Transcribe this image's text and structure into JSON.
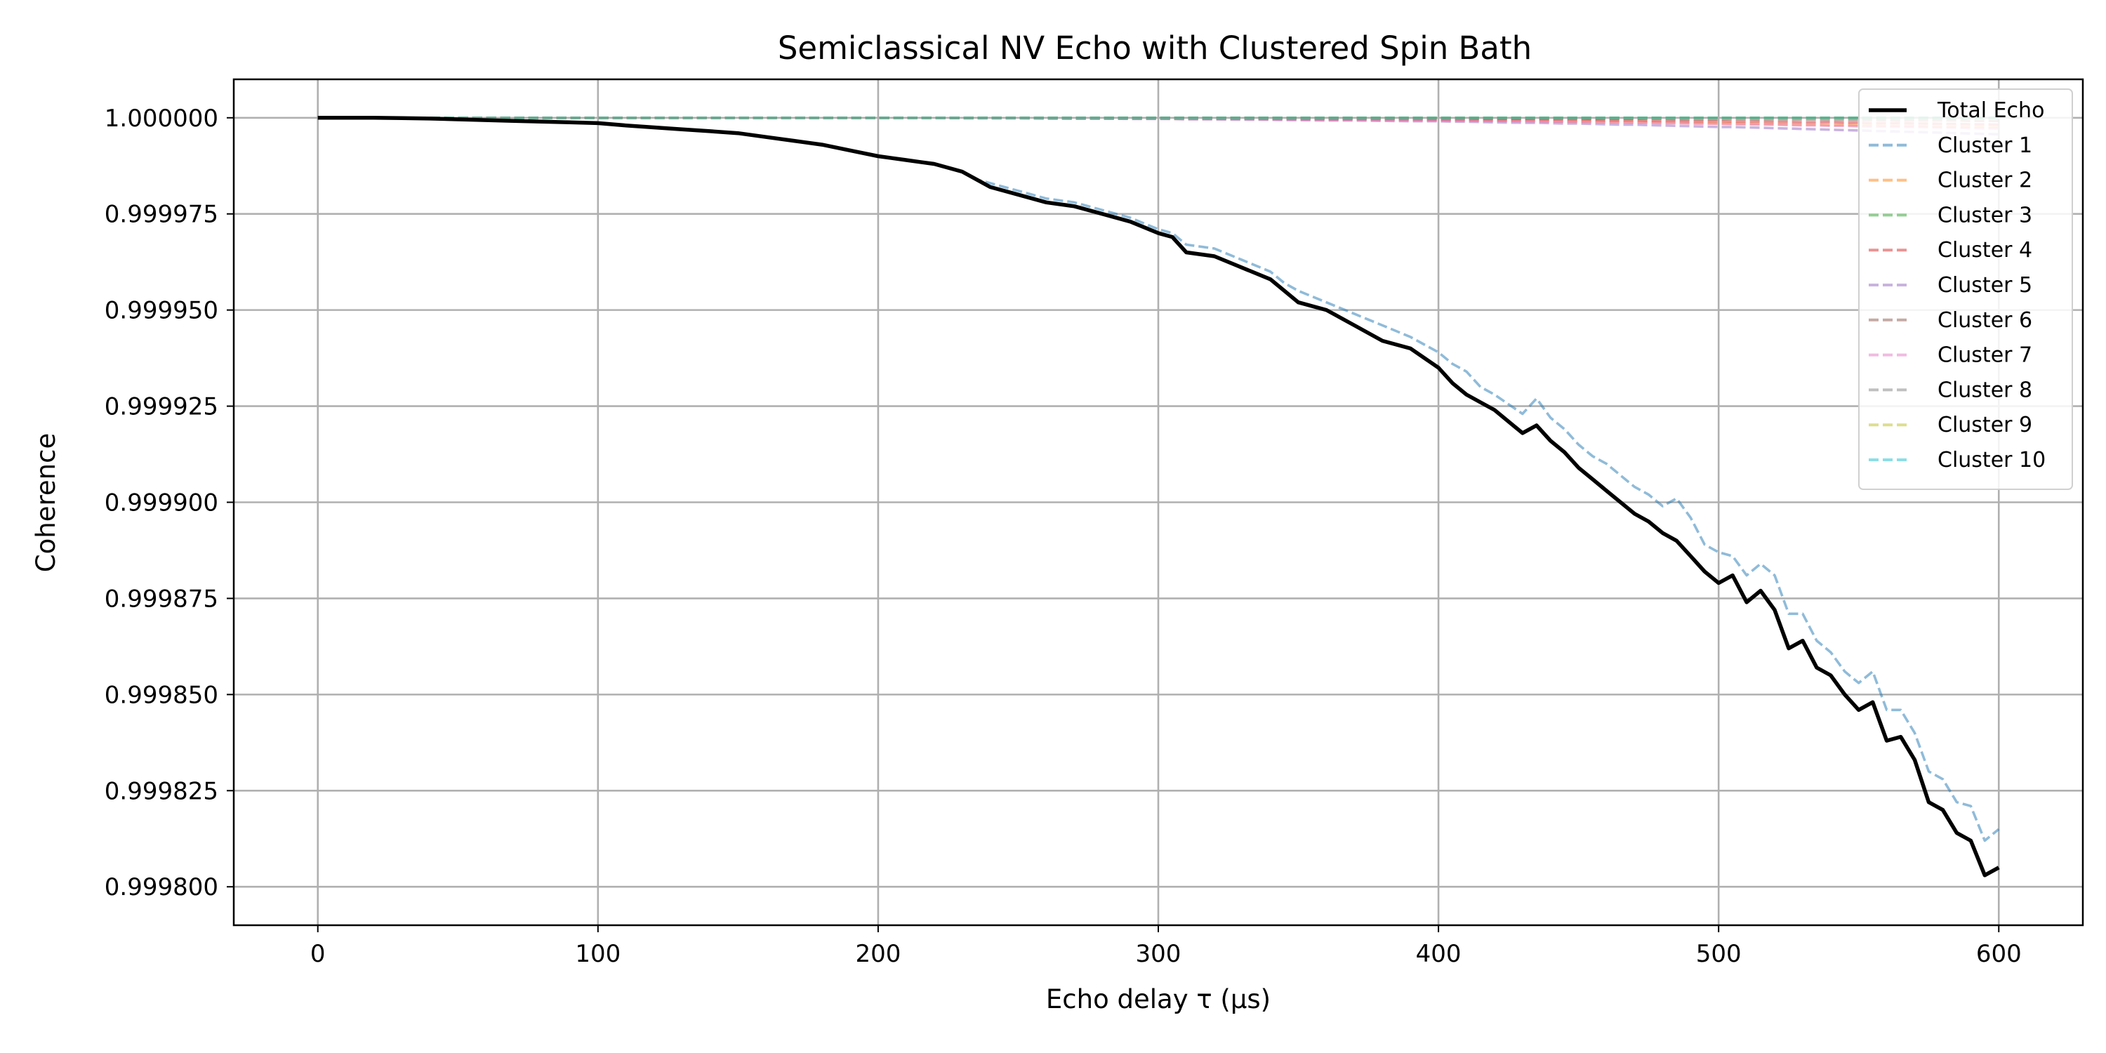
{
  "chart_data": {
    "type": "line",
    "title": "Semiclassical NV Echo with Clustered Spin Bath",
    "xlabel": "Echo delay τ (μs)",
    "ylabel": "Coherence",
    "xlim": [
      -30,
      630
    ],
    "ylim": [
      0.99979,
      1.00001
    ],
    "x_ticks": [
      0,
      100,
      200,
      300,
      400,
      500,
      600
    ],
    "x_tick_labels": [
      "0",
      "100",
      "200",
      "300",
      "400",
      "500",
      "600"
    ],
    "y_ticks": [
      0.9998,
      0.999825,
      0.99985,
      0.999875,
      0.9999,
      0.999925,
      0.99995,
      0.999975,
      1.0
    ],
    "y_tick_labels": [
      "0.999800",
      "0.999825",
      "0.999850",
      "0.999875",
      "0.999900",
      "0.999925",
      "0.999950",
      "0.999975",
      "1.000000"
    ],
    "grid": true,
    "legend_position": "top-right",
    "x": [
      0,
      10,
      20,
      30,
      40,
      50,
      60,
      70,
      80,
      90,
      100,
      110,
      120,
      130,
      140,
      150,
      160,
      170,
      180,
      190,
      200,
      210,
      215,
      220,
      230,
      235,
      240,
      250,
      260,
      270,
      280,
      290,
      300,
      305,
      310,
      320,
      330,
      340,
      345,
      350,
      360,
      370,
      380,
      390,
      400,
      405,
      410,
      415,
      420,
      430,
      435,
      440,
      445,
      450,
      455,
      460,
      465,
      470,
      475,
      480,
      485,
      490,
      495,
      500,
      505,
      510,
      515,
      520,
      525,
      530,
      535,
      540,
      545,
      550,
      555,
      560,
      565,
      570,
      575,
      580,
      585,
      590,
      595,
      600
    ],
    "series": [
      {
        "name": "Total Echo",
        "color": "#000000",
        "style": "solid",
        "values": [
          1.0,
          1.0,
          1.0,
          0.9999999,
          0.9999998,
          0.9999996,
          0.9999994,
          0.9999992,
          0.999999,
          0.9999988,
          0.9999986,
          0.999998,
          0.9999975,
          0.999997,
          0.9999965,
          0.999996,
          0.999995,
          0.999994,
          0.999993,
          0.9999915,
          0.99999,
          0.999989,
          0.9999885,
          0.999988,
          0.999986,
          0.999984,
          0.999982,
          0.99998,
          0.999978,
          0.999977,
          0.999975,
          0.999973,
          0.99997,
          0.999969,
          0.999965,
          0.999964,
          0.999961,
          0.999958,
          0.999955,
          0.999952,
          0.99995,
          0.999946,
          0.999942,
          0.99994,
          0.999935,
          0.999931,
          0.999928,
          0.999926,
          0.999924,
          0.999918,
          0.99992,
          0.999916,
          0.999913,
          0.999909,
          0.999906,
          0.999903,
          0.9999,
          0.999897,
          0.999895,
          0.999892,
          0.99989,
          0.999886,
          0.999882,
          0.999879,
          0.999881,
          0.999874,
          0.999877,
          0.999872,
          0.999862,
          0.999864,
          0.999857,
          0.999855,
          0.99985,
          0.999846,
          0.999848,
          0.999838,
          0.999839,
          0.999833,
          0.999822,
          0.99982,
          0.999814,
          0.999812,
          0.999803,
          0.999805
        ]
      },
      {
        "name": "Cluster 1",
        "color": "#1f77b4",
        "style": "dashed",
        "values": [
          1.0,
          1.0,
          1.0,
          0.9999999,
          0.9999998,
          0.9999996,
          0.9999994,
          0.9999992,
          0.999999,
          0.9999988,
          0.9999986,
          0.999998,
          0.9999975,
          0.999997,
          0.9999965,
          0.999996,
          0.999995,
          0.999994,
          0.999993,
          0.9999915,
          0.99999,
          0.999989,
          0.9999885,
          0.999988,
          0.999986,
          0.999984,
          0.999983,
          0.999981,
          0.999979,
          0.999978,
          0.999976,
          0.999974,
          0.999971,
          0.99997,
          0.999967,
          0.999966,
          0.999963,
          0.99996,
          0.999957,
          0.999955,
          0.999952,
          0.999949,
          0.999946,
          0.999943,
          0.999939,
          0.999936,
          0.999934,
          0.99993,
          0.999928,
          0.999923,
          0.999927,
          0.999922,
          0.999919,
          0.999915,
          0.999912,
          0.99991,
          0.999907,
          0.999904,
          0.999902,
          0.999899,
          0.999901,
          0.999896,
          0.999889,
          0.999887,
          0.999886,
          0.999881,
          0.999884,
          0.999881,
          0.999871,
          0.999871,
          0.999864,
          0.999861,
          0.999856,
          0.999853,
          0.999856,
          0.999846,
          0.999846,
          0.99984,
          0.99983,
          0.999828,
          0.999822,
          0.999821,
          0.999812,
          0.999815
        ]
      },
      {
        "name": "Cluster 2",
        "color": "#ff7f0e",
        "style": "dashed",
        "values": [
          1.0,
          1.0,
          1.0,
          1.0,
          1.0,
          1.0,
          1.0,
          1.0,
          1.0,
          1.0,
          1.0,
          1.0,
          1.0,
          1.0,
          1.0,
          1.0,
          1.0,
          1.0,
          1.0,
          1.0,
          1.0,
          1.0,
          1.0,
          1.0,
          0.9999999,
          0.9999999,
          0.9999999,
          0.9999999,
          0.9999999,
          0.9999998,
          0.9999998,
          0.9999998,
          0.9999998,
          0.9999997,
          0.9999997,
          0.9999997,
          0.9999997,
          0.9999996,
          0.9999996,
          0.9999996,
          0.9999995,
          0.9999995,
          0.9999995,
          0.9999994,
          0.9999994,
          0.9999993,
          0.9999993,
          0.9999993,
          0.9999992,
          0.9999992,
          0.9999991,
          0.9999991,
          0.999999,
          0.999999,
          0.999999,
          0.9999989,
          0.9999989,
          0.9999988,
          0.9999988,
          0.9999987,
          0.9999987,
          0.9999986,
          0.9999986,
          0.9999985,
          0.9999985,
          0.9999984,
          0.9999984,
          0.9999983,
          0.9999983,
          0.9999982,
          0.9999982,
          0.9999981,
          0.9999981,
          0.999998,
          0.999998,
          0.9999979,
          0.9999979,
          0.9999978,
          0.9999978,
          0.9999977,
          0.9999977,
          0.9999976,
          0.9999976,
          0.9999975
        ]
      },
      {
        "name": "Cluster 3",
        "color": "#2ca02c",
        "style": "dashed",
        "values": [
          1.0,
          1.0,
          1.0,
          1.0,
          1.0,
          1.0,
          1.0,
          1.0,
          1.0,
          1.0,
          1.0,
          1.0,
          1.0,
          1.0,
          1.0,
          1.0,
          1.0,
          1.0,
          1.0,
          1.0,
          1.0,
          1.0,
          1.0,
          1.0,
          1.0,
          1.0,
          1.0,
          1.0,
          1.0,
          1.0,
          1.0,
          1.0,
          1.0,
          1.0,
          1.0,
          1.0,
          1.0,
          1.0,
          1.0,
          1.0,
          1.0,
          1.0,
          1.0,
          1.0,
          1.0,
          1.0,
          1.0,
          1.0,
          1.0,
          1.0,
          1.0,
          1.0,
          1.0,
          1.0,
          1.0,
          1.0,
          1.0,
          1.0,
          1.0,
          1.0,
          1.0,
          1.0,
          1.0,
          1.0,
          1.0,
          1.0,
          1.0,
          1.0,
          1.0,
          1.0,
          1.0,
          1.0,
          1.0,
          1.0,
          1.0,
          1.0,
          1.0,
          1.0,
          1.0,
          1.0,
          1.0,
          1.0,
          1.0,
          1.0
        ]
      },
      {
        "name": "Cluster 4",
        "color": "#d62728",
        "style": "dashed",
        "values": [
          1.0,
          1.0,
          1.0,
          1.0,
          1.0,
          1.0,
          1.0,
          1.0,
          1.0,
          1.0,
          1.0,
          1.0,
          1.0,
          1.0,
          1.0,
          1.0,
          1.0,
          1.0,
          1.0,
          1.0,
          1.0,
          1.0,
          1.0,
          1.0,
          1.0,
          1.0,
          1.0,
          1.0,
          0.9999999,
          0.9999999,
          0.9999999,
          0.9999999,
          0.9999999,
          0.9999999,
          0.9999999,
          0.9999998,
          0.9999998,
          0.9999998,
          0.9999998,
          0.9999998,
          0.9999997,
          0.9999997,
          0.9999997,
          0.9999997,
          0.9999996,
          0.9999996,
          0.9999996,
          0.9999996,
          0.9999995,
          0.9999995,
          0.9999995,
          0.9999995,
          0.9999994,
          0.9999994,
          0.9999994,
          0.9999993,
          0.9999993,
          0.9999993,
          0.9999992,
          0.9999992,
          0.9999992,
          0.9999991,
          0.9999991,
          0.9999991,
          0.999999,
          0.999999,
          0.999999,
          0.9999989,
          0.9999989,
          0.9999988,
          0.9999988,
          0.9999988,
          0.9999987,
          0.9999987,
          0.9999986,
          0.9999986,
          0.9999986,
          0.9999985,
          0.9999985,
          0.9999984,
          0.9999984,
          0.9999983,
          0.9999983,
          0.9999982
        ]
      },
      {
        "name": "Cluster 5",
        "color": "#9467bd",
        "style": "dashed",
        "values": [
          1.0,
          1.0,
          1.0,
          1.0,
          1.0,
          1.0,
          1.0,
          1.0,
          1.0,
          1.0,
          1.0,
          1.0,
          1.0,
          1.0,
          1.0,
          1.0,
          1.0,
          1.0,
          1.0,
          1.0,
          1.0,
          1.0,
          1.0,
          1.0,
          0.9999999,
          0.9999999,
          0.9999999,
          0.9999999,
          0.9999998,
          0.9999998,
          0.9999998,
          0.9999997,
          0.9999997,
          0.9999997,
          0.9999996,
          0.9999996,
          0.9999995,
          0.9999995,
          0.9999994,
          0.9999994,
          0.9999993,
          0.9999993,
          0.9999992,
          0.9999991,
          0.9999991,
          0.999999,
          0.999999,
          0.9999989,
          0.9999988,
          0.9999987,
          0.9999987,
          0.9999986,
          0.9999985,
          0.9999985,
          0.9999984,
          0.9999983,
          0.9999982,
          0.9999982,
          0.9999981,
          0.999998,
          0.9999979,
          0.9999978,
          0.9999977,
          0.9999976,
          0.9999976,
          0.9999975,
          0.9999974,
          0.9999973,
          0.9999972,
          0.9999971,
          0.999997,
          0.9999969,
          0.9999968,
          0.9999967,
          0.9999966,
          0.9999965,
          0.9999964,
          0.9999963,
          0.9999962,
          0.9999961,
          0.999996,
          0.9999959,
          0.9999958,
          0.9999957
        ]
      },
      {
        "name": "Cluster 6",
        "color": "#8c564b",
        "style": "dashed",
        "values": [
          1.0,
          1.0,
          1.0,
          1.0,
          1.0,
          1.0,
          1.0,
          1.0,
          1.0,
          1.0,
          1.0,
          1.0,
          1.0,
          1.0,
          1.0,
          1.0,
          1.0,
          1.0,
          1.0,
          1.0,
          1.0,
          1.0,
          1.0,
          1.0,
          1.0,
          1.0,
          1.0,
          1.0,
          1.0,
          1.0,
          1.0,
          1.0,
          1.0,
          1.0,
          1.0,
          1.0,
          1.0,
          0.9999999,
          0.9999999,
          0.9999999,
          0.9999999,
          0.9999999,
          0.9999999,
          0.9999999,
          0.9999999,
          0.9999999,
          0.9999999,
          0.9999998,
          0.9999998,
          0.9999998,
          0.9999998,
          0.9999998,
          0.9999998,
          0.9999998,
          0.9999997,
          0.9999997,
          0.9999997,
          0.9999997,
          0.9999997,
          0.9999997,
          0.9999996,
          0.9999996,
          0.9999996,
          0.9999996,
          0.9999996,
          0.9999996,
          0.9999995,
          0.9999995,
          0.9999995,
          0.9999995,
          0.9999995,
          0.9999994,
          0.9999994,
          0.9999994,
          0.9999994,
          0.9999994,
          0.9999993,
          0.9999993,
          0.9999993,
          0.9999993,
          0.9999993,
          0.9999992,
          0.9999992,
          0.9999992
        ]
      },
      {
        "name": "Cluster 7",
        "color": "#e377c2",
        "style": "dashed",
        "values": [
          1.0,
          1.0,
          1.0,
          1.0,
          1.0,
          1.0,
          1.0,
          1.0,
          1.0,
          1.0,
          1.0,
          1.0,
          1.0,
          1.0,
          1.0,
          1.0,
          1.0,
          1.0,
          1.0,
          1.0,
          1.0,
          1.0,
          1.0,
          1.0,
          1.0,
          1.0,
          0.9999999,
          0.9999999,
          0.9999999,
          0.9999999,
          0.9999998,
          0.9999998,
          0.9999998,
          0.9999998,
          0.9999997,
          0.9999997,
          0.9999997,
          0.9999996,
          0.9999996,
          0.9999996,
          0.9999995,
          0.9999995,
          0.9999994,
          0.9999994,
          0.9999993,
          0.9999993,
          0.9999993,
          0.9999992,
          0.9999992,
          0.9999991,
          0.9999991,
          0.999999,
          0.999999,
          0.9999989,
          0.9999989,
          0.9999988,
          0.9999988,
          0.9999987,
          0.9999987,
          0.9999986,
          0.9999986,
          0.9999985,
          0.9999984,
          0.9999984,
          0.9999983,
          0.9999983,
          0.9999982,
          0.9999982,
          0.9999981,
          0.999998,
          0.999998,
          0.9999979,
          0.9999979,
          0.9999978,
          0.9999977,
          0.9999977,
          0.9999976,
          0.9999976,
          0.9999975,
          0.9999974,
          0.9999974,
          0.9999973,
          0.9999972,
          0.9999972
        ]
      },
      {
        "name": "Cluster 8",
        "color": "#7f7f7f",
        "style": "dashed",
        "values": [
          1.0,
          1.0,
          1.0,
          1.0,
          1.0,
          1.0,
          1.0,
          1.0,
          1.0,
          1.0,
          1.0,
          1.0,
          1.0,
          1.0,
          1.0,
          1.0,
          1.0,
          1.0,
          1.0,
          1.0,
          1.0,
          1.0,
          1.0,
          1.0,
          1.0,
          1.0,
          1.0,
          1.0,
          1.0,
          1.0,
          1.0,
          1.0,
          1.0,
          1.0,
          1.0,
          1.0,
          1.0,
          1.0,
          1.0,
          1.0,
          1.0,
          1.0,
          1.0,
          1.0,
          1.0,
          1.0,
          1.0,
          1.0,
          1.0,
          1.0,
          1.0,
          1.0,
          1.0,
          1.0,
          1.0,
          1.0,
          1.0,
          1.0,
          1.0,
          1.0,
          1.0,
          1.0,
          1.0,
          1.0,
          1.0,
          1.0,
          1.0,
          1.0,
          1.0,
          1.0,
          1.0,
          1.0,
          1.0,
          1.0,
          1.0,
          1.0,
          1.0,
          1.0,
          1.0,
          1.0,
          1.0,
          1.0,
          1.0,
          1.0
        ]
      },
      {
        "name": "Cluster 9",
        "color": "#bcbd22",
        "style": "dashed",
        "values": [
          1.0,
          1.0,
          1.0,
          1.0,
          1.0,
          1.0,
          1.0,
          1.0,
          1.0,
          1.0,
          1.0,
          1.0,
          1.0,
          1.0,
          1.0,
          1.0,
          1.0,
          1.0,
          1.0,
          1.0,
          1.0,
          1.0,
          1.0,
          1.0,
          1.0,
          1.0,
          1.0,
          1.0,
          1.0,
          1.0,
          1.0,
          1.0,
          1.0,
          1.0,
          1.0,
          1.0,
          1.0,
          1.0,
          1.0,
          1.0,
          1.0,
          1.0,
          1.0,
          1.0,
          1.0,
          1.0,
          1.0,
          1.0,
          1.0,
          1.0,
          1.0,
          1.0,
          1.0,
          1.0,
          1.0,
          1.0,
          1.0,
          1.0,
          1.0,
          1.0,
          1.0,
          1.0,
          1.0,
          1.0,
          1.0,
          1.0,
          1.0,
          1.0,
          1.0,
          1.0,
          1.0,
          1.0,
          1.0,
          1.0,
          1.0,
          1.0,
          1.0,
          1.0,
          1.0,
          1.0,
          1.0,
          1.0,
          1.0,
          1.0
        ]
      },
      {
        "name": "Cluster 10",
        "color": "#17becf",
        "style": "dashed",
        "values": [
          1.0,
          1.0,
          1.0,
          1.0,
          1.0,
          1.0,
          1.0,
          1.0,
          1.0,
          1.0,
          1.0,
          1.0,
          1.0,
          1.0,
          1.0,
          1.0,
          1.0,
          1.0,
          1.0,
          1.0,
          1.0,
          1.0,
          1.0,
          1.0,
          1.0,
          1.0,
          1.0,
          1.0,
          1.0,
          1.0,
          1.0,
          1.0,
          1.0,
          1.0,
          1.0,
          1.0,
          1.0,
          1.0,
          1.0,
          1.0,
          1.0,
          1.0,
          1.0,
          1.0,
          1.0,
          1.0,
          1.0,
          1.0,
          1.0,
          1.0,
          1.0,
          1.0,
          1.0,
          1.0,
          1.0,
          1.0,
          1.0,
          1.0,
          1.0,
          1.0,
          1.0,
          1.0,
          1.0,
          1.0,
          1.0,
          1.0,
          1.0,
          1.0,
          1.0,
          1.0,
          1.0,
          1.0,
          1.0,
          1.0,
          1.0,
          1.0,
          1.0,
          1.0,
          1.0,
          1.0,
          1.0,
          1.0,
          1.0,
          1.0
        ]
      }
    ]
  }
}
